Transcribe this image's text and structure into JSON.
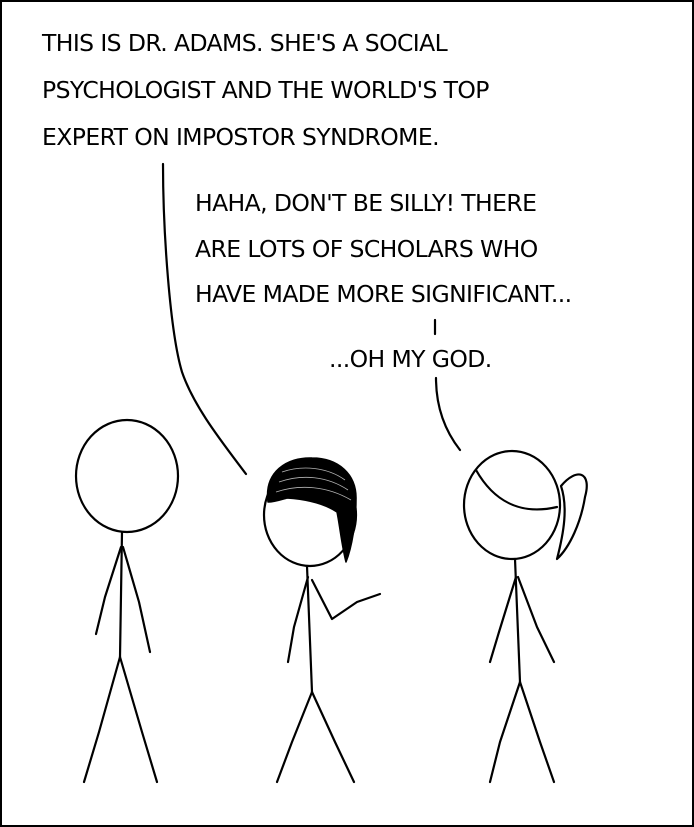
{
  "comic": {
    "colors": {
      "ink": "#000000",
      "paper": "#ffffff",
      "border": "#000000"
    },
    "dialogue": {
      "narrator": {
        "lines": [
          "THIS IS DR. ADAMS. SHE'S A SOCIAL",
          "PSYCHOLOGIST AND THE WORLD'S TOP",
          "EXPERT ON IMPOSTOR SYNDROME."
        ]
      },
      "dr_adams": {
        "lines": [
          "HAHA, DON'T BE SILLY!  THERE",
          "ARE LOTS OF SCHOLARS WHO",
          "HAVE MADE MORE SIGNIFICANT..."
        ]
      },
      "dr_adams_realization": {
        "text": "...OH MY GOD."
      }
    },
    "characters": [
      {
        "role": "narrator",
        "depiction": "stick figure, bald"
      },
      {
        "role": "dr-adams",
        "depiction": "stick figure, ponytail"
      },
      {
        "role": "bystander",
        "depiction": "stick figure, dark bob hair"
      }
    ]
  }
}
